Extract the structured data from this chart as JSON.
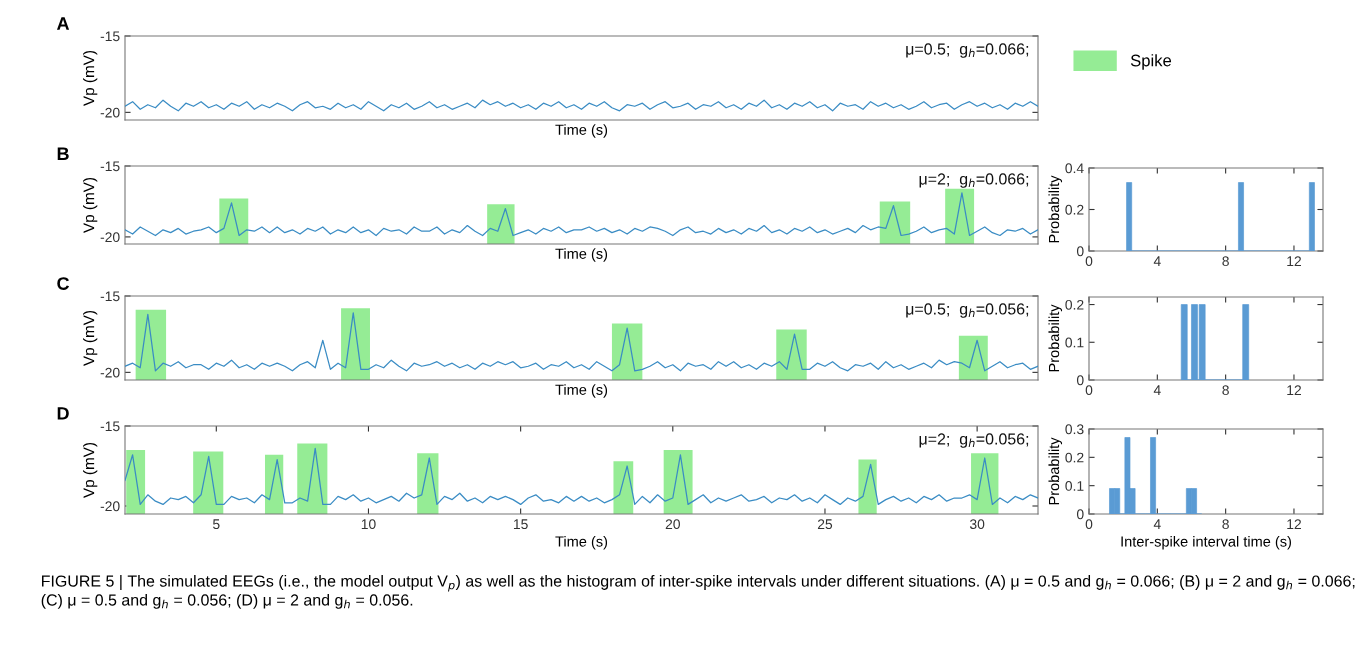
{
  "chart_data": [
    {
      "type": "line",
      "title": "A",
      "ylabel": "Vp (mV)",
      "xlabel": "Time (s)",
      "tick_labels": "y",
      "xlim": [
        2,
        32
      ],
      "ylim": [
        -20.5,
        -15
      ],
      "yticks": [
        -20,
        -15
      ],
      "x": [
        2,
        2.25,
        2.5,
        2.75,
        3,
        3.25,
        3.5,
        3.75,
        4,
        4.25,
        4.5,
        4.75,
        5,
        5.25,
        5.5,
        5.75,
        6,
        6.25,
        6.5,
        6.75,
        7,
        7.25,
        7.5,
        7.75,
        8,
        8.25,
        8.5,
        8.75,
        9,
        9.25,
        9.5,
        9.75,
        10,
        10.25,
        10.5,
        10.75,
        11,
        11.25,
        11.5,
        11.75,
        12,
        12.25,
        12.5,
        12.75,
        13,
        13.25,
        13.5,
        13.75,
        14,
        14.25,
        14.5,
        14.75,
        15,
        15.25,
        15.5,
        15.75,
        16,
        16.25,
        16.5,
        16.75,
        17,
        17.25,
        17.5,
        17.75,
        18,
        18.25,
        18.5,
        18.75,
        19,
        19.25,
        19.5,
        19.75,
        20,
        20.25,
        20.5,
        20.75,
        21,
        21.25,
        21.5,
        21.75,
        22,
        22.25,
        22.5,
        22.75,
        23,
        23.25,
        23.5,
        23.75,
        24,
        24.25,
        24.5,
        24.75,
        25,
        25.25,
        25.5,
        25.75,
        26,
        26.25,
        26.5,
        26.75,
        27,
        27.25,
        27.5,
        27.75,
        28,
        28.25,
        28.5,
        28.75,
        29,
        29.25,
        29.5,
        29.75,
        30,
        30.25,
        30.5,
        30.75,
        31,
        31.25,
        31.5,
        31.75,
        32
      ],
      "series": [
        {
          "color": "#3a8cc4",
          "values": [
            -19.6,
            -19.3,
            -19.8,
            -19.5,
            -19.7,
            -19.2,
            -19.6,
            -19.9,
            -19.4,
            -19.6,
            -19.3,
            -19.7,
            -19.5,
            -19.8,
            -19.4,
            -19.6,
            -19.3,
            -19.8,
            -19.5,
            -19.7,
            -19.4,
            -19.6,
            -19.9,
            -19.5,
            -19.3,
            -19.7,
            -19.6,
            -19.8,
            -19.4,
            -19.7,
            -19.5,
            -19.8,
            -19.3,
            -19.6,
            -19.9,
            -19.5,
            -19.7,
            -19.4,
            -19.8,
            -19.6,
            -19.3,
            -19.7,
            -19.5,
            -19.8,
            -19.6,
            -19.4,
            -19.7,
            -19.2,
            -19.5,
            -19.3,
            -19.6,
            -19.4,
            -19.7,
            -19.5,
            -19.8,
            -19.4,
            -19.6,
            -19.3,
            -19.7,
            -19.5,
            -19.8,
            -19.4,
            -19.6,
            -19.3,
            -19.7,
            -19.9,
            -19.5,
            -19.6,
            -19.4,
            -19.8,
            -19.5,
            -19.3,
            -19.7,
            -19.6,
            -19.4,
            -19.8,
            -19.5,
            -19.6,
            -19.3,
            -19.7,
            -19.5,
            -19.8,
            -19.4,
            -19.6,
            -19.2,
            -19.7,
            -19.5,
            -19.8,
            -19.4,
            -19.6,
            -19.3,
            -19.7,
            -19.5,
            -19.9,
            -19.4,
            -19.6,
            -19.5,
            -19.8,
            -19.3,
            -19.6,
            -19.4,
            -19.7,
            -19.5,
            -19.8,
            -19.6,
            -19.3,
            -19.7,
            -19.5,
            -19.4,
            -19.8,
            -19.5,
            -19.3,
            -19.6,
            -19.4,
            -19.7,
            -19.5,
            -19.8,
            -19.4,
            -19.6,
            -19.3,
            -19.6
          ]
        }
      ],
      "annotations": [
        "μ=0.5;",
        "g$_{h}$=0.066;"
      ]
    },
    {
      "type": "line",
      "title": "B",
      "ylabel": "Vp (mV)",
      "xlabel": "Time (s)",
      "tick_labels": "y",
      "xlim": [
        2,
        32
      ],
      "ylim": [
        -20.5,
        -15
      ],
      "yticks": [
        -20,
        -15
      ],
      "legend": "top right",
      "x": [
        2,
        2.25,
        2.5,
        2.75,
        3,
        3.25,
        3.5,
        3.75,
        4,
        4.25,
        4.5,
        4.75,
        5,
        5.25,
        5.5,
        5.75,
        6,
        6.25,
        6.5,
        6.75,
        7,
        7.25,
        7.5,
        7.75,
        8,
        8.25,
        8.5,
        8.75,
        9,
        9.25,
        9.5,
        9.75,
        10,
        10.25,
        10.5,
        10.75,
        11,
        11.25,
        11.5,
        11.75,
        12,
        12.25,
        12.5,
        12.75,
        13,
        13.25,
        13.5,
        13.75,
        14,
        14.25,
        14.5,
        14.75,
        15,
        15.25,
        15.5,
        15.75,
        16,
        16.25,
        16.5,
        16.75,
        17,
        17.25,
        17.5,
        17.75,
        18,
        18.25,
        18.5,
        18.75,
        19,
        19.25,
        19.5,
        19.75,
        20,
        20.25,
        20.5,
        20.75,
        21,
        21.25,
        21.5,
        21.75,
        22,
        22.25,
        22.5,
        22.75,
        23,
        23.25,
        23.5,
        23.75,
        24,
        24.25,
        24.5,
        24.75,
        25,
        25.25,
        25.5,
        25.75,
        26,
        26.25,
        26.5,
        26.75,
        27,
        27.25,
        27.5,
        27.75,
        28,
        28.25,
        28.5,
        28.75,
        29,
        29.25,
        29.5,
        29.75,
        30,
        30.25,
        30.5,
        30.75,
        31,
        31.25,
        31.5,
        31.75,
        32
      ],
      "series": [
        {
          "color": "#3a8cc4",
          "values": [
            -19.5,
            -19.8,
            -19.3,
            -19.6,
            -19.9,
            -19.5,
            -19.7,
            -19.4,
            -19.8,
            -19.6,
            -19.5,
            -19.3,
            -19.7,
            -19.4,
            -17.6,
            -19.9,
            -19.5,
            -19.6,
            -19.3,
            -19.7,
            -19.3,
            -19.7,
            -19.5,
            -19.8,
            -19.4,
            -19.6,
            -19.3,
            -19.8,
            -19.5,
            -19.7,
            -19.3,
            -19.7,
            -19.5,
            -19.9,
            -19.4,
            -19.6,
            -19.5,
            -19.8,
            -19.3,
            -19.6,
            -19.6,
            -19.3,
            -19.8,
            -19.5,
            -19.7,
            -19.2,
            -19.6,
            -19.9,
            -19.4,
            -19.6,
            -18.0,
            -19.9,
            -19.7,
            -19.5,
            -19.8,
            -19.4,
            -19.6,
            -19.3,
            -19.7,
            -19.5,
            -19.5,
            -19.3,
            -19.6,
            -19.4,
            -19.7,
            -19.5,
            -19.8,
            -19.4,
            -19.6,
            -19.3,
            -19.4,
            -19.6,
            -19.9,
            -19.5,
            -19.3,
            -19.7,
            -19.6,
            -19.8,
            -19.4,
            -19.7,
            -19.5,
            -19.8,
            -19.4,
            -19.6,
            -19.2,
            -19.7,
            -19.5,
            -19.8,
            -19.4,
            -19.6,
            -19.3,
            -19.7,
            -19.5,
            -19.8,
            -19.6,
            -19.4,
            -19.7,
            -19.2,
            -19.5,
            -19.3,
            -19.4,
            -17.8,
            -19.9,
            -19.8,
            -19.6,
            -19.3,
            -19.7,
            -19.5,
            -19.4,
            -19.8,
            -16.9,
            -19.9,
            -19.6,
            -19.3,
            -19.7,
            -19.9,
            -19.5,
            -19.6,
            -19.4,
            -19.8,
            -19.5
          ]
        }
      ],
      "bands": [
        {
          "axis": "x",
          "from": 5.1,
          "to": 6.05,
          "label": "Spike",
          "color": "#95ec95"
        },
        {
          "axis": "x",
          "from": 13.9,
          "to": 14.8,
          "color": "#95ec95"
        },
        {
          "axis": "x",
          "from": 26.8,
          "to": 27.8,
          "color": "#95ec95"
        },
        {
          "axis": "x",
          "from": 28.95,
          "to": 29.9,
          "color": "#95ec95"
        }
      ],
      "annotations": [
        "μ=2;",
        "g$_{h}$=0.066;"
      ]
    },
    {
      "type": "histogram",
      "ylabel": "Probability",
      "tick_labels": "xy",
      "xlim": [
        0,
        13.7
      ],
      "xticks": [
        0,
        4,
        8,
        12
      ],
      "ylim": [
        0,
        0.4
      ],
      "yticks": [
        0,
        0.2,
        0.4
      ],
      "color": "#5a9bd4",
      "bins": [
        2.2,
        2.5,
        8.75,
        9.05,
        12.9,
        13.2
      ],
      "values": [
        0.33,
        0,
        0.33,
        0,
        0.33
      ]
    },
    {
      "type": "line",
      "title": "C",
      "ylabel": "Vp (mV)",
      "xlabel": "Time (s)",
      "tick_labels": "y",
      "xlim": [
        2,
        32
      ],
      "ylim": [
        -20.5,
        -15
      ],
      "yticks": [
        -20,
        -15
      ],
      "x": [
        2,
        2.25,
        2.5,
        2.75,
        3,
        3.25,
        3.5,
        3.75,
        4,
        4.25,
        4.5,
        4.75,
        5,
        5.25,
        5.5,
        5.75,
        6,
        6.25,
        6.5,
        6.75,
        7,
        7.25,
        7.5,
        7.75,
        8,
        8.25,
        8.5,
        8.75,
        9,
        9.25,
        9.5,
        9.75,
        10,
        10.25,
        10.5,
        10.75,
        11,
        11.25,
        11.5,
        11.75,
        12,
        12.25,
        12.5,
        12.75,
        13,
        13.25,
        13.5,
        13.75,
        14,
        14.25,
        14.5,
        14.75,
        15,
        15.25,
        15.5,
        15.75,
        16,
        16.25,
        16.5,
        16.75,
        17,
        17.25,
        17.5,
        17.75,
        18,
        18.25,
        18.5,
        18.75,
        19,
        19.25,
        19.5,
        19.75,
        20,
        20.25,
        20.5,
        20.75,
        21,
        21.25,
        21.5,
        21.75,
        22,
        22.25,
        22.5,
        22.75,
        23,
        23.25,
        23.5,
        23.75,
        24,
        24.25,
        24.5,
        24.75,
        25,
        25.25,
        25.5,
        25.75,
        26,
        26.25,
        26.5,
        26.75,
        27,
        27.25,
        27.5,
        27.75,
        28,
        28.25,
        28.5,
        28.75,
        29,
        29.25,
        29.5,
        29.75,
        30,
        30.25,
        30.5,
        30.75,
        31,
        31.25,
        31.5,
        31.75,
        32
      ],
      "series": [
        {
          "color": "#3a8cc4",
          "values": [
            -19.6,
            -19.4,
            -19.7,
            -16.2,
            -19.9,
            -19.4,
            -19.6,
            -19.3,
            -19.7,
            -19.5,
            -19.5,
            -19.8,
            -19.4,
            -19.6,
            -19.2,
            -19.7,
            -19.5,
            -19.8,
            -19.4,
            -19.6,
            -19.4,
            -19.6,
            -19.9,
            -19.5,
            -19.3,
            -19.7,
            -17.9,
            -19.8,
            -19.4,
            -19.7,
            -16.1,
            -19.8,
            -19.8,
            -19.5,
            -19.7,
            -19.2,
            -19.6,
            -19.9,
            -19.4,
            -19.6,
            -19.5,
            -19.3,
            -19.6,
            -19.4,
            -19.7,
            -19.5,
            -19.8,
            -19.4,
            -19.6,
            -19.3,
            -19.5,
            -19.3,
            -19.7,
            -19.6,
            -19.4,
            -19.8,
            -19.5,
            -19.6,
            -19.3,
            -19.7,
            -19.5,
            -19.8,
            -19.3,
            -19.6,
            -19.9,
            -19.5,
            -17.1,
            -19.9,
            -19.8,
            -19.6,
            -19.3,
            -19.7,
            -19.5,
            -19.9,
            -19.4,
            -19.6,
            -19.5,
            -19.8,
            -19.3,
            -19.6,
            -19.3,
            -19.7,
            -19.5,
            -19.8,
            -19.4,
            -19.6,
            -19.3,
            -19.8,
            -17.5,
            -19.8,
            -19.8,
            -19.4,
            -19.6,
            -19.3,
            -19.7,
            -19.9,
            -19.5,
            -19.6,
            -19.4,
            -19.8,
            -19.3,
            -19.7,
            -19.5,
            -19.8,
            -19.6,
            -19.4,
            -19.7,
            -19.2,
            -19.5,
            -19.3,
            -19.4,
            -19.7,
            -17.9,
            -19.9,
            -19.6,
            -19.3,
            -19.7,
            -19.5,
            -19.4,
            -19.8,
            -19.6
          ]
        }
      ],
      "bands": [
        {
          "axis": "x",
          "from": 2.35,
          "to": 3.35,
          "color": "#95ec95"
        },
        {
          "axis": "x",
          "from": 9.1,
          "to": 10.05,
          "color": "#95ec95"
        },
        {
          "axis": "x",
          "from": 18.0,
          "to": 19.0,
          "color": "#95ec95"
        },
        {
          "axis": "x",
          "from": 23.4,
          "to": 24.4,
          "color": "#95ec95"
        },
        {
          "axis": "x",
          "from": 29.4,
          "to": 30.35,
          "color": "#95ec95"
        }
      ],
      "annotations": [
        "μ=0.5;",
        "g$_{h}$=0.056;"
      ]
    },
    {
      "type": "histogram",
      "ylabel": "Probability",
      "tick_labels": "xy",
      "xlim": [
        0,
        13.7
      ],
      "xticks": [
        0,
        4,
        8,
        12
      ],
      "ylim": [
        0,
        0.22
      ],
      "yticks": [
        0,
        0.1,
        0.2
      ],
      "color": "#5a9bd4",
      "bins": [
        5.4,
        5.75,
        6.0,
        6.35,
        6.45,
        6.8,
        9.0,
        9.35
      ],
      "values": [
        0.2,
        0,
        0.2,
        0,
        0.2,
        0,
        0.2
      ]
    },
    {
      "type": "line",
      "title": "D",
      "ylabel": "Vp (mV)",
      "xlabel": "Time (s)",
      "xlim": [
        2,
        32
      ],
      "xticks": [
        5,
        10,
        15,
        20,
        25,
        30
      ],
      "ylim": [
        -20.5,
        -15
      ],
      "yticks": [
        -20,
        -15
      ],
      "x": [
        2,
        2.25,
        2.5,
        2.75,
        3,
        3.25,
        3.5,
        3.75,
        4,
        4.25,
        4.5,
        4.75,
        5,
        5.25,
        5.5,
        5.75,
        6,
        6.25,
        6.5,
        6.75,
        7,
        7.25,
        7.5,
        7.75,
        8,
        8.25,
        8.5,
        8.75,
        9,
        9.25,
        9.5,
        9.75,
        10,
        10.25,
        10.5,
        10.75,
        11,
        11.25,
        11.5,
        11.75,
        12,
        12.25,
        12.5,
        12.75,
        13,
        13.25,
        13.5,
        13.75,
        14,
        14.25,
        14.5,
        14.75,
        15,
        15.25,
        15.5,
        15.75,
        16,
        16.25,
        16.5,
        16.75,
        17,
        17.25,
        17.5,
        17.75,
        18,
        18.25,
        18.5,
        18.75,
        19,
        19.25,
        19.5,
        19.75,
        20,
        20.25,
        20.5,
        20.75,
        21,
        21.25,
        21.5,
        21.75,
        22,
        22.25,
        22.5,
        22.75,
        23,
        23.25,
        23.5,
        23.75,
        24,
        24.25,
        24.5,
        24.75,
        25,
        25.25,
        25.5,
        25.75,
        26,
        26.25,
        26.5,
        26.75,
        27,
        27.25,
        27.5,
        27.75,
        28,
        28.25,
        28.5,
        28.75,
        29,
        29.25,
        29.5,
        29.75,
        30,
        30.25,
        30.5,
        30.75,
        31,
        31.25,
        31.5,
        31.75,
        32
      ],
      "series": [
        {
          "color": "#3a8cc4",
          "values": [
            -18.4,
            -16.8,
            -19.9,
            -19.3,
            -19.7,
            -19.9,
            -19.5,
            -19.6,
            -19.4,
            -19.8,
            -19.3,
            -16.9,
            -19.9,
            -19.9,
            -19.4,
            -19.6,
            -19.5,
            -19.8,
            -19.3,
            -19.6,
            -17.1,
            -19.8,
            -19.8,
            -19.5,
            -19.7,
            -16.4,
            -19.9,
            -19.9,
            -19.4,
            -19.6,
            -19.3,
            -19.7,
            -19.5,
            -19.8,
            -19.6,
            -19.4,
            -19.7,
            -19.2,
            -19.5,
            -19.3,
            -17.0,
            -19.9,
            -19.4,
            -19.6,
            -19.2,
            -19.7,
            -19.5,
            -19.8,
            -19.4,
            -19.6,
            -19.4,
            -19.6,
            -19.9,
            -19.5,
            -19.3,
            -19.7,
            -19.6,
            -19.8,
            -19.4,
            -19.7,
            -19.4,
            -19.7,
            -19.5,
            -19.8,
            -19.6,
            -19.3,
            -17.5,
            -19.9,
            -19.4,
            -19.8,
            -19.3,
            -19.7,
            -19.5,
            -16.8,
            -19.9,
            -19.6,
            -19.3,
            -19.8,
            -19.5,
            -19.7,
            -19.5,
            -19.3,
            -19.7,
            -19.6,
            -19.4,
            -19.8,
            -19.5,
            -19.6,
            -19.3,
            -19.7,
            -19.5,
            -19.8,
            -19.3,
            -19.6,
            -19.9,
            -19.5,
            -19.7,
            -19.4,
            -17.4,
            -19.9,
            -19.6,
            -19.4,
            -19.7,
            -19.5,
            -19.8,
            -19.4,
            -19.6,
            -19.3,
            -19.7,
            -19.5,
            -19.5,
            -19.3,
            -19.6,
            -17.0,
            -19.9,
            -19.5,
            -19.8,
            -19.4,
            -19.6,
            -19.3,
            -19.5
          ]
        }
      ],
      "bands": [
        {
          "axis": "x",
          "from": 2.04,
          "to": 2.66,
          "color": "#95ec95"
        },
        {
          "axis": "x",
          "from": 4.24,
          "to": 5.23,
          "color": "#95ec95"
        },
        {
          "axis": "x",
          "from": 6.6,
          "to": 7.2,
          "color": "#95ec95"
        },
        {
          "axis": "x",
          "from": 7.66,
          "to": 8.65,
          "color": "#95ec95"
        },
        {
          "axis": "x",
          "from": 11.6,
          "to": 12.3,
          "color": "#95ec95"
        },
        {
          "axis": "x",
          "from": 18.05,
          "to": 18.7,
          "color": "#95ec95"
        },
        {
          "axis": "x",
          "from": 19.7,
          "to": 20.65,
          "color": "#95ec95"
        },
        {
          "axis": "x",
          "from": 26.1,
          "to": 26.7,
          "color": "#95ec95"
        },
        {
          "axis": "x",
          "from": 29.8,
          "to": 30.7,
          "color": "#95ec95"
        }
      ],
      "annotations": [
        "μ=2;",
        "g$_{h}$=0.056;",
        "FIGURE 5 | The simulated EEGs (i.e., the model output V$_{p}$) as well as the histogram of inter-spike intervals under different situations. (A) μ = 0.5 and g$_{h}$ = 0.066; (B) μ = 2 and g$_{h}$ = 0.066; (C) μ = 0.5 and g$_{h}$ = 0.056; (D) μ = 2 and g$_{h}$ = 0.056."
      ]
    },
    {
      "type": "histogram",
      "ylabel": "Probability",
      "xlabel": "Inter-spike interval time (s)",
      "xlim": [
        0,
        13.7
      ],
      "xticks": [
        0,
        4,
        8,
        12
      ],
      "ylim": [
        0,
        0.3
      ],
      "yticks": [
        0,
        0.1,
        0.2,
        0.3
      ],
      "color": "#5a9bd4",
      "bins": [
        1.2,
        1.5,
        1.8,
        2.1,
        2.4,
        2.7,
        3.0,
        3.3,
        3.6,
        3.9,
        4.2,
        4.5,
        4.8,
        5.1,
        5.4,
        5.7,
        6.0,
        6.3,
        6.6
      ],
      "values": [
        0.09,
        0.09,
        0,
        0.27,
        0.09,
        0,
        0,
        0,
        0.27,
        0,
        0,
        0,
        0,
        0,
        0,
        0.09,
        0.09,
        0
      ]
    }
  ]
}
